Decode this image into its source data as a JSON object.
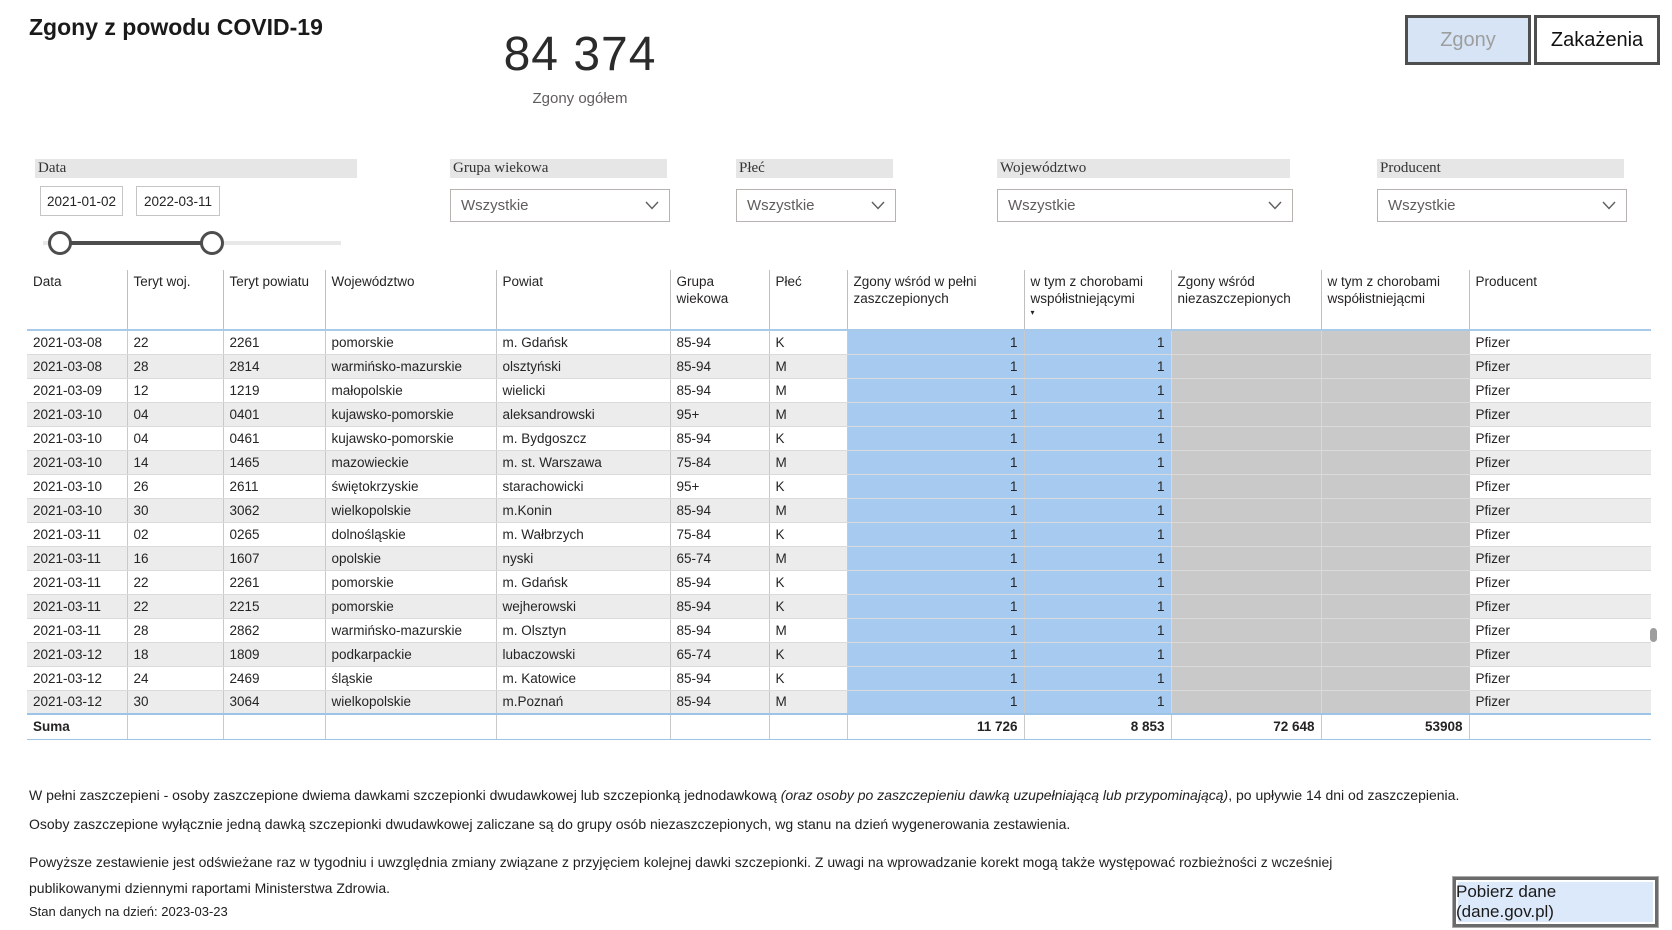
{
  "page": {
    "title": "Zgony z powodu COVID-19"
  },
  "kpi": {
    "value": "84 374",
    "label": "Zgony ogółem"
  },
  "view_toggle": {
    "deaths": "Zgony",
    "infections": "Zakażenia"
  },
  "filters": {
    "date": {
      "label": "Data",
      "start": "2021-01-02",
      "end": "2022-03-11"
    },
    "age_group": {
      "label": "Grupa wiekowa",
      "value": "Wszystkie"
    },
    "sex": {
      "label": "Płeć",
      "value": "Wszystkie"
    },
    "voivodeship": {
      "label": "Województwo",
      "value": "Wszystkie"
    },
    "producer": {
      "label": "Producent",
      "value": "Wszystkie"
    }
  },
  "table": {
    "sorted_column_index": 8,
    "columns": [
      {
        "key": "data",
        "label": "Data"
      },
      {
        "key": "teryt-woj",
        "label": "Teryt woj."
      },
      {
        "key": "teryt-powiatu",
        "label": "Teryt powiatu"
      },
      {
        "key": "wojewodztwo",
        "label": "Województwo"
      },
      {
        "key": "powiat",
        "label": "Powiat"
      },
      {
        "key": "grupa-wiekowa",
        "label": "Grupa wiekowa"
      },
      {
        "key": "plec",
        "label": "Płeć"
      },
      {
        "key": "zgony-zaszczepionych",
        "label": "Zgony wśród w pełni zaszczepionych"
      },
      {
        "key": "zaszczepieni-choroby",
        "label": "w tym z chorobami współistniejącymi"
      },
      {
        "key": "zgony-niezaszczepionych",
        "label": "Zgony wśród niezaszczepionych"
      },
      {
        "key": "niezaszczepieni-choroby",
        "label": "w tym z chorobami współistniejącmi"
      },
      {
        "key": "producent",
        "label": "Producent"
      }
    ],
    "rows": [
      [
        "2021-03-08",
        "22",
        "2261",
        "pomorskie",
        "m. Gdańsk",
        "85-94",
        "K",
        "1",
        "1",
        "",
        "",
        "Pfizer"
      ],
      [
        "2021-03-08",
        "28",
        "2814",
        "warmińsko-mazurskie",
        "olsztyński",
        "85-94",
        "M",
        "1",
        "1",
        "",
        "",
        "Pfizer"
      ],
      [
        "2021-03-09",
        "12",
        "1219",
        "małopolskie",
        "wielicki",
        "85-94",
        "M",
        "1",
        "1",
        "",
        "",
        "Pfizer"
      ],
      [
        "2021-03-10",
        "04",
        "0401",
        "kujawsko-pomorskie",
        "aleksandrowski",
        "95+",
        "M",
        "1",
        "1",
        "",
        "",
        "Pfizer"
      ],
      [
        "2021-03-10",
        "04",
        "0461",
        "kujawsko-pomorskie",
        "m. Bydgoszcz",
        "85-94",
        "K",
        "1",
        "1",
        "",
        "",
        "Pfizer"
      ],
      [
        "2021-03-10",
        "14",
        "1465",
        "mazowieckie",
        "m. st. Warszawa",
        "75-84",
        "M",
        "1",
        "1",
        "",
        "",
        "Pfizer"
      ],
      [
        "2021-03-10",
        "26",
        "2611",
        "świętokrzyskie",
        "starachowicki",
        "95+",
        "K",
        "1",
        "1",
        "",
        "",
        "Pfizer"
      ],
      [
        "2021-03-10",
        "30",
        "3062",
        "wielkopolskie",
        "m.Konin",
        "85-94",
        "M",
        "1",
        "1",
        "",
        "",
        "Pfizer"
      ],
      [
        "2021-03-11",
        "02",
        "0265",
        "dolnośląskie",
        "m. Wałbrzych",
        "75-84",
        "K",
        "1",
        "1",
        "",
        "",
        "Pfizer"
      ],
      [
        "2021-03-11",
        "16",
        "1607",
        "opolskie",
        "nyski",
        "65-74",
        "M",
        "1",
        "1",
        "",
        "",
        "Pfizer"
      ],
      [
        "2021-03-11",
        "22",
        "2261",
        "pomorskie",
        "m. Gdańsk",
        "85-94",
        "K",
        "1",
        "1",
        "",
        "",
        "Pfizer"
      ],
      [
        "2021-03-11",
        "22",
        "2215",
        "pomorskie",
        "wejherowski",
        "85-94",
        "K",
        "1",
        "1",
        "",
        "",
        "Pfizer"
      ],
      [
        "2021-03-11",
        "28",
        "2862",
        "warmińsko-mazurskie",
        "m. Olsztyn",
        "85-94",
        "M",
        "1",
        "1",
        "",
        "",
        "Pfizer"
      ],
      [
        "2021-03-12",
        "18",
        "1809",
        "podkarpackie",
        "lubaczowski",
        "65-74",
        "K",
        "1",
        "1",
        "",
        "",
        "Pfizer"
      ],
      [
        "2021-03-12",
        "24",
        "2469",
        "śląskie",
        "m. Katowice",
        "85-94",
        "K",
        "1",
        "1",
        "",
        "",
        "Pfizer"
      ],
      [
        "2021-03-12",
        "30",
        "3064",
        "wielkopolskie",
        "m.Poznań",
        "85-94",
        "M",
        "1",
        "1",
        "",
        "",
        "Pfizer"
      ]
    ],
    "sum": {
      "label": "Suma",
      "vaccinated": "11 726",
      "vaccinated_comorbid": "8 853",
      "unvaccinated": "72 648",
      "unvaccinated_comorbid": "53908"
    }
  },
  "footer": {
    "note1_before": "W pełni zaszczepieni - osoby zaszczepione dwiema dawkami szczepionki dwudawkowej lub szczepionką jednodawkową ",
    "note1_italic": "(oraz osoby po zaszczepieniu dawką uzupełniającą lub przypominającą)",
    "note1_after": ", po upływie 14 dni od zaszczepienia.",
    "note2": "Osoby zaszczepione wyłącznie jedną dawką szczepionki dwudawkowej zaliczane są do grupy osób niezaszczepionych, wg stanu na dzień wygenerowania zestawienia.",
    "note3": "Powyższe zestawienie jest odświeżane raz w tygodniu i uwzględnia zmiany związane z przyjęciem kolejnej dawki szczepionki. Z uwagi na wprowadzanie korekt mogą także występować rozbieżności z wcześniej publikowanymi dziennymi raportami Ministerstwa Zdrowia.",
    "data_status": "Stan danych na dzień: 2023-03-23",
    "download_button": "Pobierz dane (dane.gov.pl)"
  },
  "colors": {
    "highlight_blue": "#A7CBF0",
    "muted_gray": "#C9C9C9",
    "accent_line": "#9DC3E6",
    "active_button_bg": "#D6E4F6",
    "filter_label_bg": "#E6E6E6"
  }
}
